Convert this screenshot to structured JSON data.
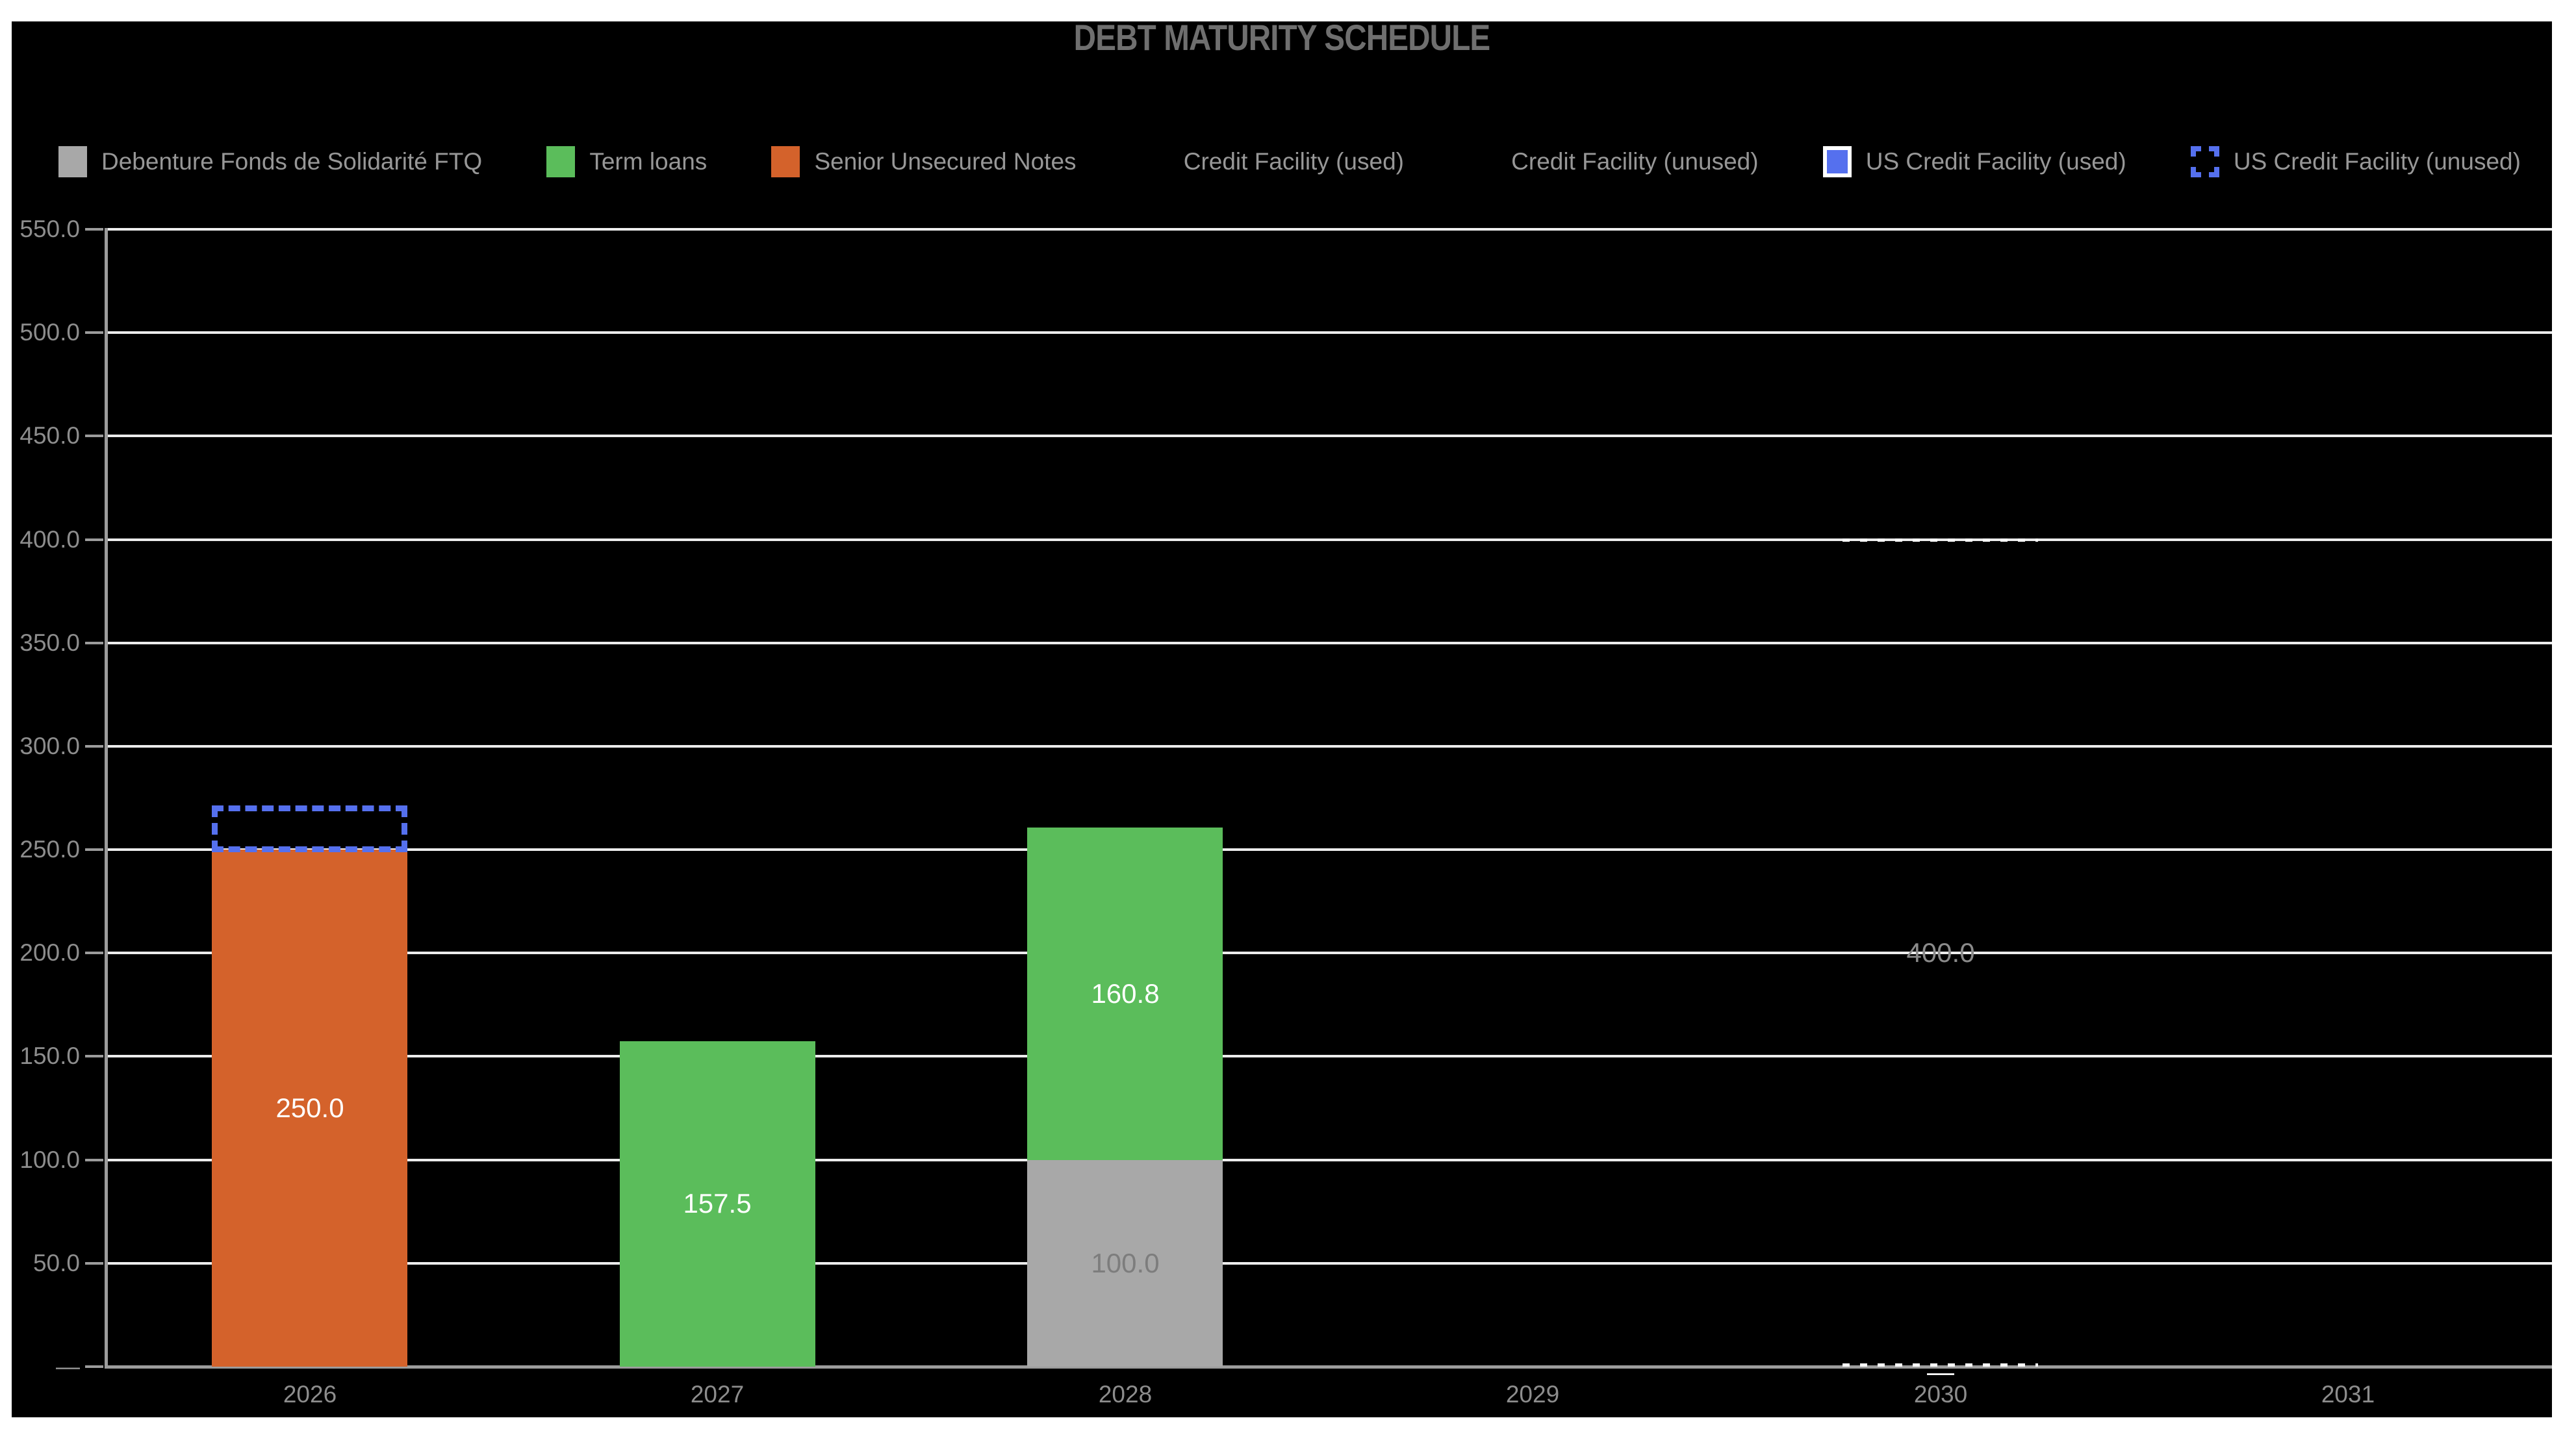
{
  "window": {
    "background": "#ffffff",
    "card_background": "#000000"
  },
  "title": "DEBT MATURITY SCHEDULE",
  "legend": {
    "items": [
      {
        "label": "Debenture Fonds de Solidarité FTQ",
        "color": "#a8a8a8",
        "swatch": "solid"
      },
      {
        "label": "Term loans",
        "color": "#5bbd5b",
        "swatch": "solid"
      },
      {
        "label": "Senior Unsecured Notes",
        "color": "#d4622b",
        "swatch": "solid"
      },
      {
        "label": "Credit Facility (used)",
        "color": "#000000",
        "swatch": "solid"
      },
      {
        "label": "Credit Facility (unused)",
        "color": "#000000",
        "swatch": "solid"
      },
      {
        "label": "US Credit Facility (used)",
        "color": "#5570ee",
        "swatch": "outlined-white"
      },
      {
        "label": "US Credit Facility (unused)",
        "color": "#5570ee",
        "swatch": "dashed-outline"
      }
    ]
  },
  "chart_data": {
    "type": "bar",
    "subtype": "stacked",
    "title": "DEBT MATURITY SCHEDULE",
    "categories": [
      "2026",
      "2027",
      "2028",
      "2029",
      "2030",
      "2031"
    ],
    "y_axis": {
      "min": 0,
      "max": 550,
      "step": 50,
      "zero_label": "—",
      "decimals": 1
    },
    "grid": true,
    "legend_position": "top",
    "axis_color": "#9c9c9c",
    "gridline_color": "#ececec",
    "series": [
      {
        "name": "Debenture Fonds de Solidarité FTQ",
        "style": "solid",
        "color": "#a8a8a8",
        "label_color": "#7d7d7d",
        "values": [
          0,
          0,
          100.0,
          0,
          0,
          0
        ],
        "labels": [
          "",
          "",
          "100.0",
          "",
          "",
          ""
        ]
      },
      {
        "name": "Term loans",
        "style": "solid",
        "color": "#5bbd5b",
        "label_color": "#ffffff",
        "values": [
          0,
          157.5,
          160.8,
          0,
          0,
          0
        ],
        "labels": [
          "",
          "157.5",
          "160.8",
          "",
          "",
          ""
        ]
      },
      {
        "name": "Senior Unsecured Notes",
        "style": "solid",
        "color": "#d4622b",
        "label_color": "#ffffff",
        "values": [
          250.0,
          0,
          0,
          0,
          0,
          0
        ],
        "labels": [
          "250.0",
          "",
          "",
          "",
          "",
          ""
        ]
      },
      {
        "name": "Credit Facility (used)",
        "style": "solid",
        "color": "#000000",
        "label_color": "#ffffff",
        "values": [
          0,
          0,
          0,
          0,
          0,
          0
        ],
        "labels": [
          "",
          "",
          "",
          "",
          "—",
          ""
        ]
      },
      {
        "name": "Credit Facility (unused)",
        "style": "dotted-outline",
        "outline_color": "#ffffff",
        "label_color": "#8a8a8a",
        "values": [
          0,
          0,
          0,
          0,
          400.0,
          0
        ],
        "labels": [
          "",
          "",
          "",
          "",
          "400.0",
          ""
        ]
      },
      {
        "name": "US Credit Facility (used)",
        "style": "solid",
        "color": "#5570ee",
        "label_color": "#ffffff",
        "values": [
          0,
          0,
          0,
          0,
          0,
          0
        ],
        "labels": [
          "",
          "",
          "",
          "",
          "",
          ""
        ]
      },
      {
        "name": "US Credit Facility (unused)",
        "style": "dashed-outline",
        "outline_color": "#5570ee",
        "label_color": "#ffffff",
        "values": [
          21.4,
          0,
          0,
          0,
          0,
          0
        ],
        "labels": [
          "",
          "",
          "",
          "",
          "",
          ""
        ]
      }
    ]
  }
}
